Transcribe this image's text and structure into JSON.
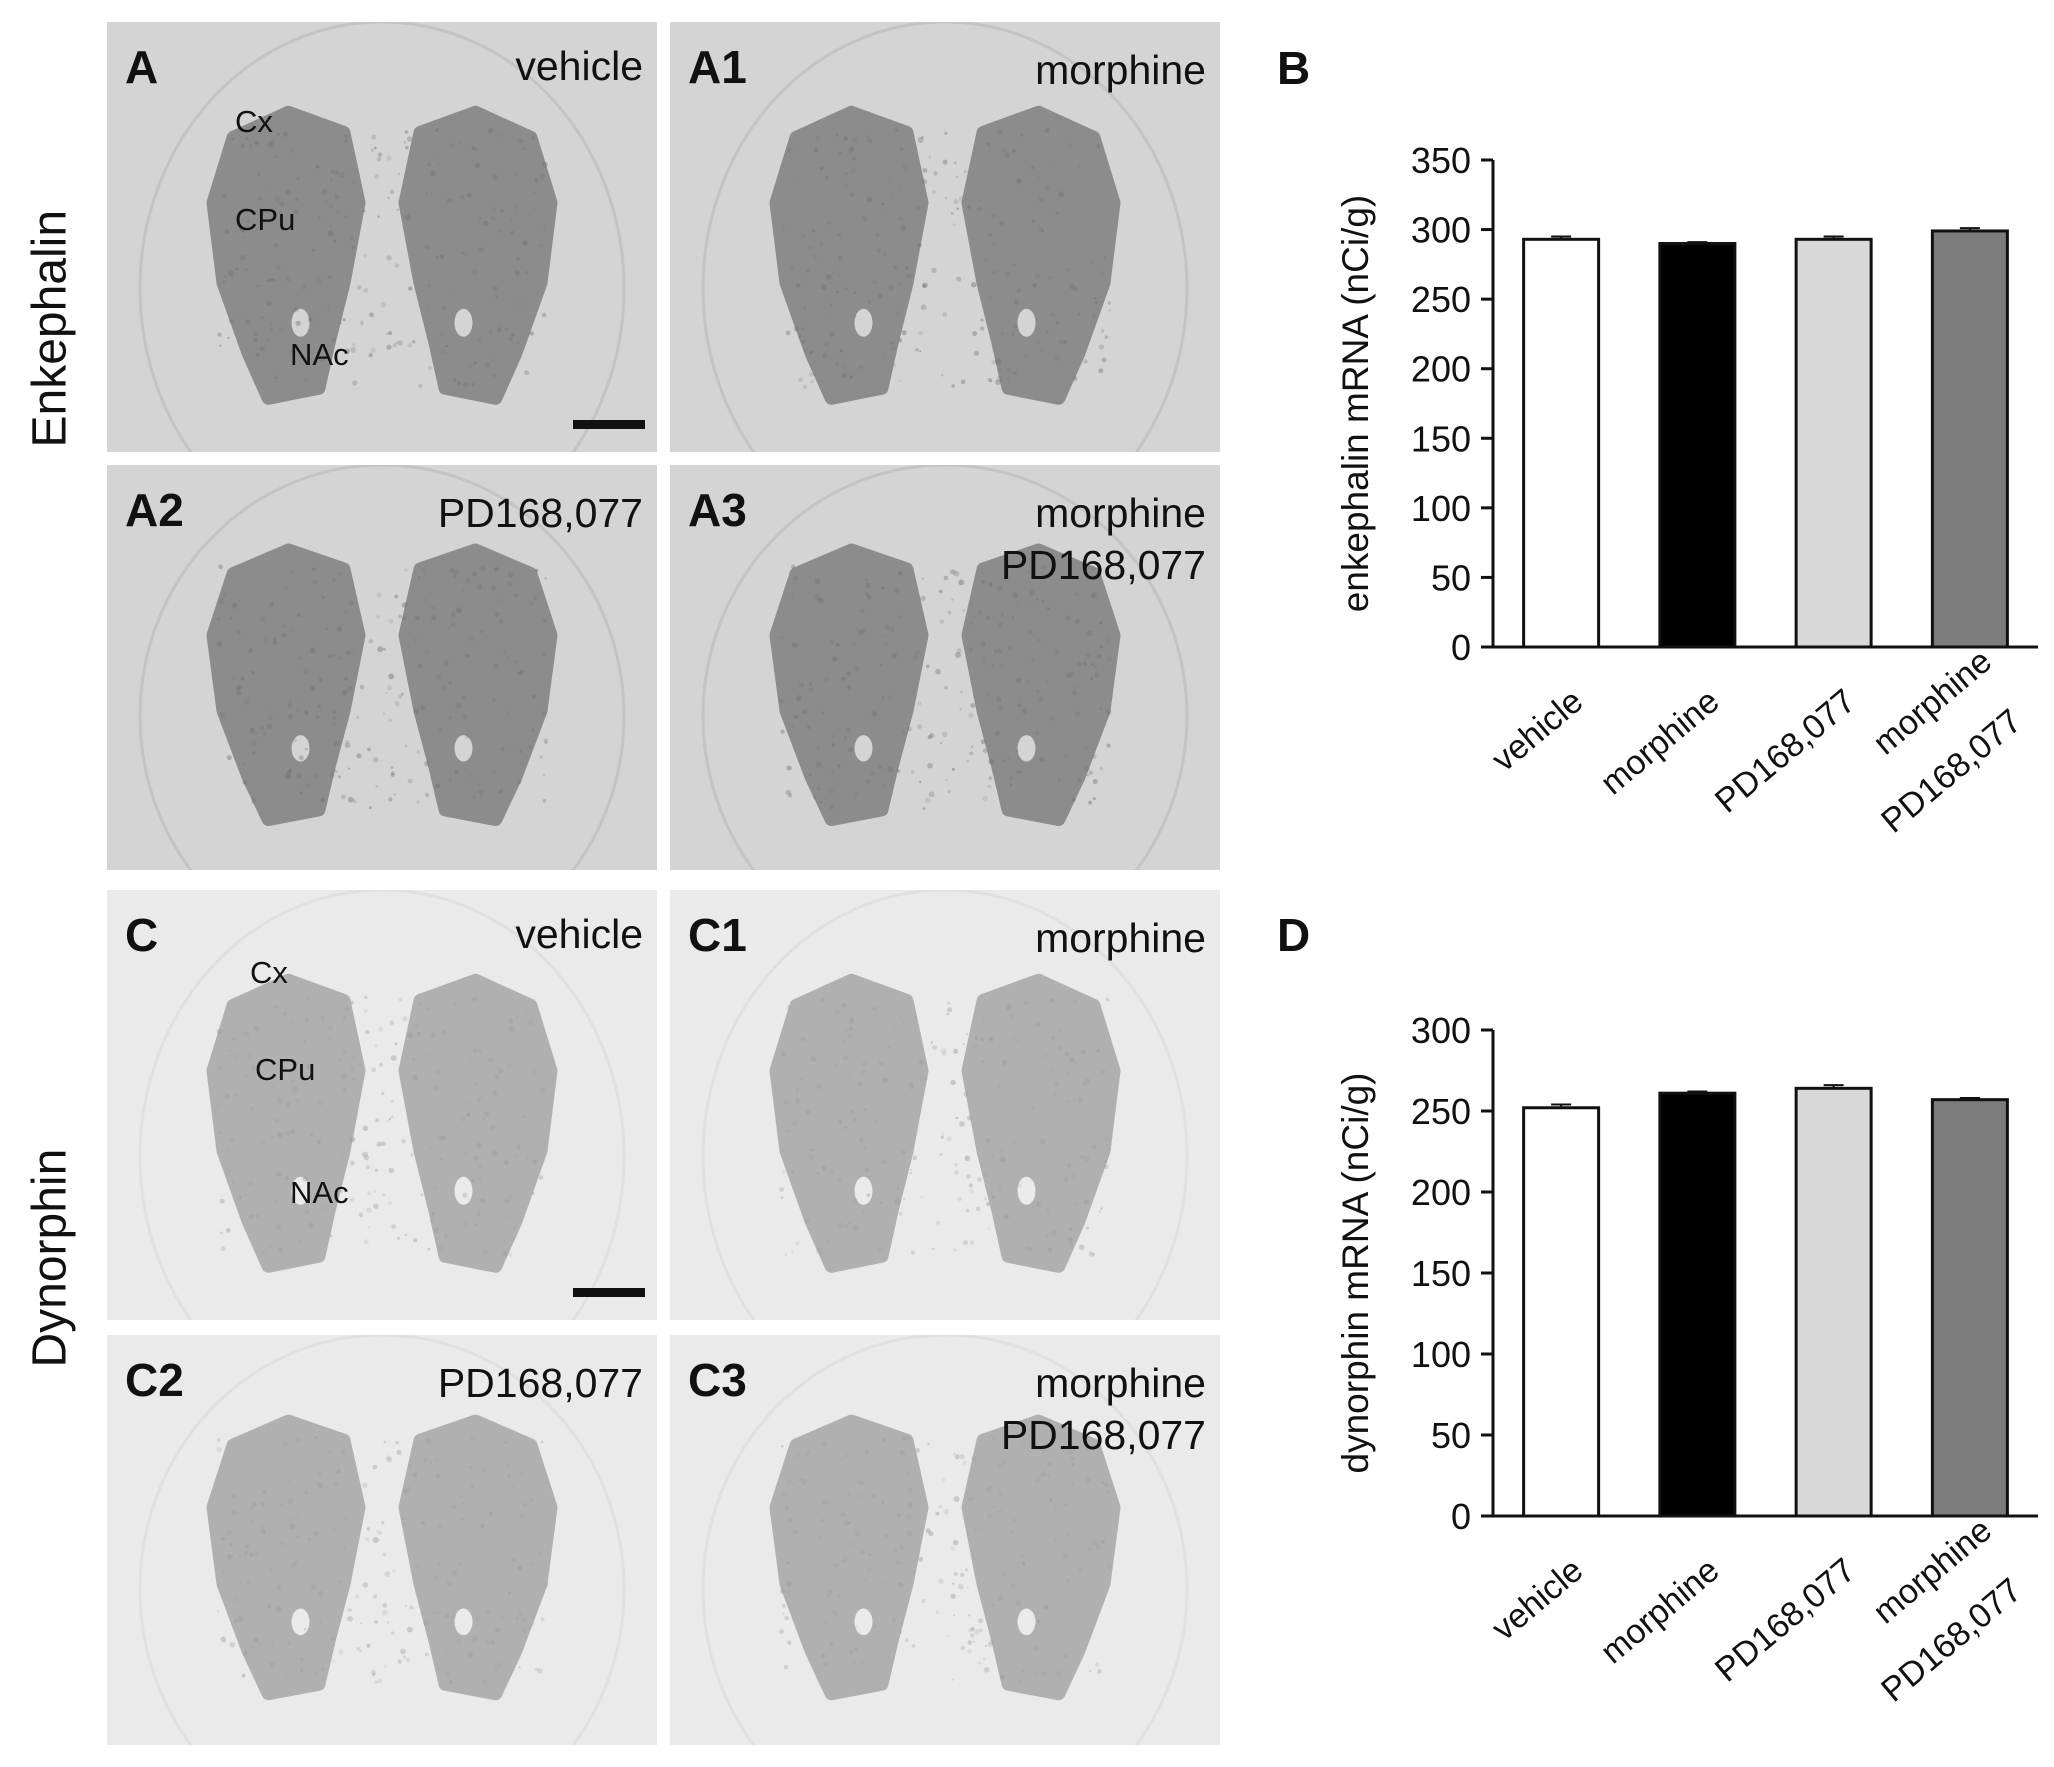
{
  "row_labels": {
    "top": "Enkephalin",
    "bottom": "Dynorphin"
  },
  "panels": {
    "A": {
      "id": "A",
      "condition": [
        "vehicle"
      ]
    },
    "A1": {
      "id": "A1",
      "condition": [
        "morphine"
      ]
    },
    "A2": {
      "id": "A2",
      "condition": [
        "PD168,077"
      ]
    },
    "A3": {
      "id": "A3",
      "condition": [
        "morphine",
        "PD168,077"
      ]
    },
    "C": {
      "id": "C",
      "condition": [
        "vehicle"
      ]
    },
    "C1": {
      "id": "C1",
      "condition": [
        "morphine"
      ]
    },
    "C2": {
      "id": "C2",
      "condition": [
        "PD168,077"
      ]
    },
    "C3": {
      "id": "C3",
      "condition": [
        "morphine",
        "PD168,077"
      ]
    }
  },
  "regions": {
    "cortex": "Cx",
    "striatum": "CPu",
    "accumbens": "NAc"
  },
  "colors": {
    "bar_fills": [
      "#ffffff",
      "#000000",
      "#d8d8d8",
      "#7c7c7c"
    ],
    "enk_tissue": "#8c8c8c",
    "enk_bg": "#d4d4d4",
    "dyn_tissue": "#b0b0b0",
    "dyn_bg": "#eaeaea"
  },
  "chart_data": [
    {
      "panel": "B",
      "type": "bar",
      "categories": [
        [
          "vehicle"
        ],
        [
          "morphine"
        ],
        [
          "PD168,077"
        ],
        [
          "morphine",
          "PD168,077"
        ]
      ],
      "values": [
        293,
        290,
        293,
        299
      ],
      "errors": [
        2,
        1,
        2,
        2
      ],
      "ylabel": "enkephalin mRNA (nCi/g)",
      "ylim": [
        0,
        350
      ],
      "yticks": [
        0,
        50,
        100,
        150,
        200,
        250,
        300,
        350
      ],
      "grid": false
    },
    {
      "panel": "D",
      "type": "bar",
      "categories": [
        [
          "vehicle"
        ],
        [
          "morphine"
        ],
        [
          "PD168,077"
        ],
        [
          "morphine",
          "PD168,077"
        ]
      ],
      "values": [
        252,
        261,
        264,
        257
      ],
      "errors": [
        2,
        1,
        2,
        1
      ],
      "ylabel": "dynorphin mRNA (nCi/g)",
      "ylim": [
        0,
        300
      ],
      "yticks": [
        0,
        50,
        100,
        150,
        200,
        250,
        300
      ],
      "grid": false
    }
  ]
}
